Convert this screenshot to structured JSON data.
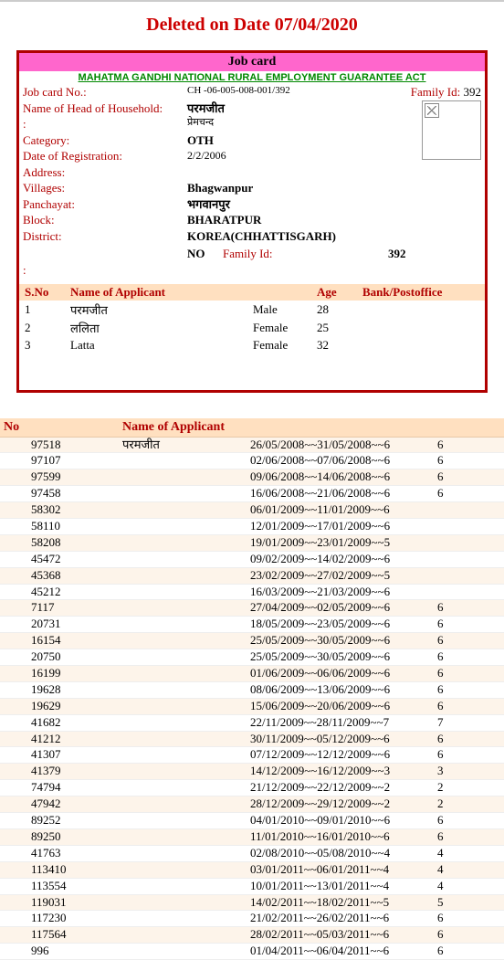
{
  "deleted_banner": "Deleted on Date 07/04/2020",
  "card": {
    "title": "Job card",
    "act": "MAHATMA GANDHI NATIONAL RURAL EMPLOYMENT GUARANTEE ACT",
    "fields": {
      "jobcard_label": "Job card No.:",
      "jobcard_val": "CH -06-005-008-001/392",
      "head_label": "Name of Head of Household:",
      "head_val": "परमजीत",
      "head_val2": "प्रेमचन्द",
      "cat_label": "Category:",
      "cat_val": "OTH",
      "reg_label": "Date of Registration:",
      "reg_val": "2/2/2006",
      "addr_label": "Address:",
      "vill_label": "Villages:",
      "vill_val": "Bhagwanpur",
      "panch_label": "Panchayat:",
      "panch_val": "भगवानपुर",
      "block_label": "Block:",
      "block_val": "BHARATPUR",
      "dist_label": "District:",
      "dist_val": "KOREA(CHHATTISGARH)",
      "no_val": "NO",
      "famid_label_top": "Family Id:",
      "famid_val_top": "392",
      "famid_label_mid": "Family Id:",
      "famid_val_mid": "392",
      "colon": ":"
    },
    "appl": {
      "h_sno": "S.No",
      "h_name": "Name of Applicant",
      "h_age": "Age",
      "h_bank": "Bank/Postoffice",
      "rows": [
        {
          "sno": "1",
          "name": "परमजीत",
          "gender": "Male",
          "age": "28"
        },
        {
          "sno": "2",
          "name": "ललिता",
          "gender": "Female",
          "age": "25"
        },
        {
          "sno": "3",
          "name": "Latta",
          "gender": "Female",
          "age": "32"
        }
      ]
    }
  },
  "summary": {
    "h_no": "No",
    "h_name": "Name of Applicant",
    "first_name": "परमजीत",
    "rows": [
      {
        "id": "97518",
        "period": "26/05/2008~~31/05/2008~~6",
        "n": "6"
      },
      {
        "id": "97107",
        "period": "02/06/2008~~07/06/2008~~6",
        "n": "6"
      },
      {
        "id": "97599",
        "period": "09/06/2008~~14/06/2008~~6",
        "n": "6"
      },
      {
        "id": "97458",
        "period": "16/06/2008~~21/06/2008~~6",
        "n": "6"
      },
      {
        "id": "58302",
        "period": "06/01/2009~~11/01/2009~~6",
        "n": ""
      },
      {
        "id": "58110",
        "period": "12/01/2009~~17/01/2009~~6",
        "n": ""
      },
      {
        "id": "58208",
        "period": "19/01/2009~~23/01/2009~~5",
        "n": ""
      },
      {
        "id": "45472",
        "period": "09/02/2009~~14/02/2009~~6",
        "n": ""
      },
      {
        "id": "45368",
        "period": "23/02/2009~~27/02/2009~~5",
        "n": ""
      },
      {
        "id": "45212",
        "period": "16/03/2009~~21/03/2009~~6",
        "n": ""
      },
      {
        "id": "7117",
        "period": "27/04/2009~~02/05/2009~~6",
        "n": "6"
      },
      {
        "id": "20731",
        "period": "18/05/2009~~23/05/2009~~6",
        "n": "6"
      },
      {
        "id": "16154",
        "period": "25/05/2009~~30/05/2009~~6",
        "n": "6"
      },
      {
        "id": "20750",
        "period": "25/05/2009~~30/05/2009~~6",
        "n": "6"
      },
      {
        "id": "16199",
        "period": "01/06/2009~~06/06/2009~~6",
        "n": "6"
      },
      {
        "id": "19628",
        "period": "08/06/2009~~13/06/2009~~6",
        "n": "6"
      },
      {
        "id": "19629",
        "period": "15/06/2009~~20/06/2009~~6",
        "n": "6"
      },
      {
        "id": "41682",
        "period": "22/11/2009~~28/11/2009~~7",
        "n": "7"
      },
      {
        "id": "41212",
        "period": "30/11/2009~~05/12/2009~~6",
        "n": "6"
      },
      {
        "id": "41307",
        "period": "07/12/2009~~12/12/2009~~6",
        "n": "6"
      },
      {
        "id": "41379",
        "period": "14/12/2009~~16/12/2009~~3",
        "n": "3"
      },
      {
        "id": "74794",
        "period": "21/12/2009~~22/12/2009~~2",
        "n": "2"
      },
      {
        "id": "47942",
        "period": "28/12/2009~~29/12/2009~~2",
        "n": "2"
      },
      {
        "id": "89252",
        "period": "04/01/2010~~09/01/2010~~6",
        "n": "6"
      },
      {
        "id": "89250",
        "period": "11/01/2010~~16/01/2010~~6",
        "n": "6"
      },
      {
        "id": "41763",
        "period": "02/08/2010~~05/08/2010~~4",
        "n": "4"
      },
      {
        "id": "113410",
        "period": "03/01/2011~~06/01/2011~~4",
        "n": "4"
      },
      {
        "id": "113554",
        "period": "10/01/2011~~13/01/2011~~4",
        "n": "4"
      },
      {
        "id": "119031",
        "period": "14/02/2011~~18/02/2011~~5",
        "n": "5"
      },
      {
        "id": "117230",
        "period": "21/02/2011~~26/02/2011~~6",
        "n": "6"
      },
      {
        "id": "117564",
        "period": "28/02/2011~~05/03/2011~~6",
        "n": "6"
      },
      {
        "id": "996",
        "period": "01/04/2011~~06/04/2011~~6",
        "n": "6"
      }
    ]
  }
}
